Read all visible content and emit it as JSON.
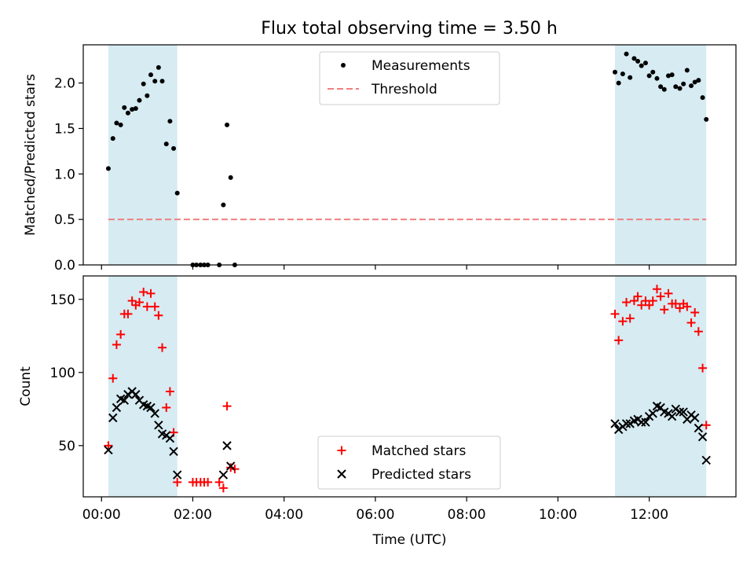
{
  "title": "Flux total observing time = 3.50 h",
  "shade_color": "#add8e6",
  "chart_data": [
    {
      "type": "scatter",
      "ylabel": "Matched/Predicted stars",
      "xlim": [
        -0.4,
        13.9
      ],
      "ylim": [
        0,
        2.42
      ],
      "yticks": [
        0.0,
        0.5,
        1.0,
        1.5,
        2.0
      ],
      "ytick_labels": [
        "0.0",
        "0.5",
        "1.0",
        "1.5",
        "2.0"
      ],
      "shaded_intervals": [
        [
          0.15,
          1.66
        ],
        [
          11.25,
          13.25
        ]
      ],
      "legend": {
        "position": "top-center",
        "entries": [
          {
            "label": "Measurements",
            "marker": "dot",
            "color": "#000000"
          },
          {
            "label": "Threshold",
            "marker": "dashed-line",
            "color": "#f08080"
          }
        ]
      },
      "threshold": {
        "name": "Threshold",
        "y": 0.5,
        "x_range": [
          0.15,
          13.25
        ],
        "color": "#f08080"
      },
      "series": [
        {
          "name": "Measurements",
          "color": "#000000",
          "points": [
            [
              0.15,
              1.06
            ],
            [
              0.25,
              1.39
            ],
            [
              0.33,
              1.56
            ],
            [
              0.42,
              1.54
            ],
            [
              0.5,
              1.73
            ],
            [
              0.58,
              1.67
            ],
            [
              0.67,
              1.71
            ],
            [
              0.75,
              1.72
            ],
            [
              0.83,
              1.81
            ],
            [
              0.92,
              1.99
            ],
            [
              1.0,
              1.86
            ],
            [
              1.08,
              2.09
            ],
            [
              1.17,
              2.02
            ],
            [
              1.25,
              2.17
            ],
            [
              1.33,
              2.02
            ],
            [
              1.42,
              1.33
            ],
            [
              1.5,
              1.58
            ],
            [
              1.58,
              1.28
            ],
            [
              1.66,
              0.79
            ],
            [
              2.0,
              0.0
            ],
            [
              2.08,
              0.0
            ],
            [
              2.17,
              0.0
            ],
            [
              2.25,
              0.0
            ],
            [
              2.33,
              0.0
            ],
            [
              2.58,
              0.0
            ],
            [
              2.67,
              0.66
            ],
            [
              2.75,
              1.54
            ],
            [
              2.83,
              0.96
            ],
            [
              2.92,
              0.0
            ],
            [
              11.25,
              2.12
            ],
            [
              11.33,
              2.0
            ],
            [
              11.42,
              2.1
            ],
            [
              11.5,
              2.32
            ],
            [
              11.58,
              2.06
            ],
            [
              11.67,
              2.27
            ],
            [
              11.75,
              2.24
            ],
            [
              11.83,
              2.19
            ],
            [
              11.92,
              2.22
            ],
            [
              12.0,
              2.08
            ],
            [
              12.08,
              2.12
            ],
            [
              12.17,
              2.05
            ],
            [
              12.25,
              1.96
            ],
            [
              12.33,
              1.93
            ],
            [
              12.42,
              2.08
            ],
            [
              12.5,
              2.09
            ],
            [
              12.58,
              1.96
            ],
            [
              12.67,
              1.94
            ],
            [
              12.75,
              1.99
            ],
            [
              12.83,
              2.14
            ],
            [
              12.92,
              1.97
            ],
            [
              13.0,
              2.01
            ],
            [
              13.08,
              2.03
            ],
            [
              13.17,
              1.84
            ],
            [
              13.25,
              1.6
            ]
          ]
        }
      ]
    },
    {
      "type": "scatter",
      "ylabel": "Count",
      "xlabel": "Time (UTC)",
      "xlim": [
        -0.4,
        13.9
      ],
      "ylim": [
        15,
        166
      ],
      "xticks": [
        0,
        2,
        4,
        6,
        8,
        10,
        12
      ],
      "xtick_labels": [
        "00:00",
        "02:00",
        "04:00",
        "06:00",
        "08:00",
        "10:00",
        "12:00"
      ],
      "yticks": [
        50,
        100,
        150
      ],
      "ytick_labels": [
        "50",
        "100",
        "150"
      ],
      "shaded_intervals": [
        [
          0.15,
          1.66
        ],
        [
          11.25,
          13.25
        ]
      ],
      "legend": {
        "position": "bottom-center",
        "entries": [
          {
            "label": "Matched stars",
            "marker": "plus",
            "color": "#ff0000"
          },
          {
            "label": "Predicted stars",
            "marker": "x",
            "color": "#000000"
          }
        ]
      },
      "series": [
        {
          "name": "Matched stars",
          "marker": "plus",
          "color": "#ff0000",
          "points": [
            [
              0.15,
              50
            ],
            [
              0.25,
              96
            ],
            [
              0.33,
              119
            ],
            [
              0.42,
              126
            ],
            [
              0.5,
              140
            ],
            [
              0.58,
              140
            ],
            [
              0.67,
              149
            ],
            [
              0.75,
              146
            ],
            [
              0.83,
              148
            ],
            [
              0.92,
              155
            ],
            [
              1.0,
              145
            ],
            [
              1.08,
              154
            ],
            [
              1.17,
              145
            ],
            [
              1.25,
              139
            ],
            [
              1.33,
              117
            ],
            [
              1.42,
              76
            ],
            [
              1.5,
              87
            ],
            [
              1.58,
              59
            ],
            [
              1.66,
              25
            ],
            [
              2.0,
              25
            ],
            [
              2.08,
              25
            ],
            [
              2.17,
              25
            ],
            [
              2.25,
              25
            ],
            [
              2.33,
              25
            ],
            [
              2.58,
              25
            ],
            [
              2.67,
              21
            ],
            [
              2.75,
              77
            ],
            [
              2.83,
              35
            ],
            [
              2.92,
              34
            ],
            [
              11.25,
              140
            ],
            [
              11.33,
              122
            ],
            [
              11.42,
              135
            ],
            [
              11.5,
              148
            ],
            [
              11.58,
              137
            ],
            [
              11.67,
              149
            ],
            [
              11.75,
              152
            ],
            [
              11.83,
              146
            ],
            [
              11.92,
              149
            ],
            [
              12.0,
              146
            ],
            [
              12.08,
              149
            ],
            [
              12.17,
              157
            ],
            [
              12.25,
              152
            ],
            [
              12.33,
              143
            ],
            [
              12.42,
              154
            ],
            [
              12.5,
              147
            ],
            [
              12.58,
              147
            ],
            [
              12.67,
              144
            ],
            [
              12.75,
              147
            ],
            [
              12.83,
              145
            ],
            [
              12.92,
              134
            ],
            [
              13.0,
              141
            ],
            [
              13.08,
              128
            ],
            [
              13.17,
              103
            ],
            [
              13.25,
              64
            ]
          ]
        },
        {
          "name": "Predicted stars",
          "marker": "x",
          "color": "#000000",
          "points": [
            [
              0.15,
              47
            ],
            [
              0.25,
              69
            ],
            [
              0.33,
              76
            ],
            [
              0.42,
              82
            ],
            [
              0.5,
              81
            ],
            [
              0.58,
              85
            ],
            [
              0.67,
              87
            ],
            [
              0.75,
              85
            ],
            [
              0.83,
              81
            ],
            [
              0.92,
              78
            ],
            [
              1.0,
              77
            ],
            [
              1.08,
              76
            ],
            [
              1.17,
              72
            ],
            [
              1.25,
              64
            ],
            [
              1.33,
              58
            ],
            [
              1.42,
              57
            ],
            [
              1.5,
              55
            ],
            [
              1.58,
              46
            ],
            [
              1.66,
              30
            ],
            [
              2.67,
              30
            ],
            [
              2.75,
              50
            ],
            [
              2.83,
              36
            ],
            [
              11.25,
              65
            ],
            [
              11.33,
              61
            ],
            [
              11.42,
              63
            ],
            [
              11.5,
              65
            ],
            [
              11.58,
              65
            ],
            [
              11.67,
              67
            ],
            [
              11.75,
              68
            ],
            [
              11.83,
              66
            ],
            [
              11.92,
              66
            ],
            [
              12.0,
              70
            ],
            [
              12.08,
              72
            ],
            [
              12.17,
              77
            ],
            [
              12.25,
              76
            ],
            [
              12.33,
              73
            ],
            [
              12.42,
              72
            ],
            [
              12.5,
              70
            ],
            [
              12.58,
              75
            ],
            [
              12.67,
              73
            ],
            [
              12.75,
              73
            ],
            [
              12.83,
              68
            ],
            [
              12.92,
              71
            ],
            [
              13.0,
              69
            ],
            [
              13.08,
              62
            ],
            [
              13.17,
              56
            ],
            [
              13.25,
              40
            ]
          ]
        }
      ]
    }
  ]
}
